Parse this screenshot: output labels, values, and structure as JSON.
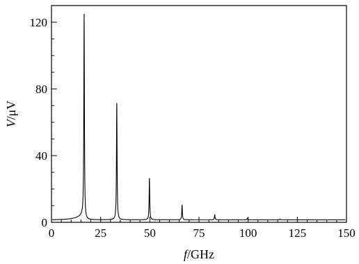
{
  "chart_data": {
    "type": "line",
    "title": "",
    "xlabel_italic": "f",
    "xlabel_unit": "/GHz",
    "ylabel_italic": "V",
    "ylabel_unit": "/μV",
    "xlim": [
      0,
      150
    ],
    "ylim": [
      0,
      130
    ],
    "xticks": [
      0,
      25,
      50,
      75,
      100,
      125,
      150
    ],
    "yticks": [
      0,
      40,
      80,
      120
    ],
    "grid": false,
    "legend": "none",
    "series": [
      {
        "color": "#000000",
        "peaks": [
          {
            "f": 16.6,
            "v": 120
          },
          {
            "f": 33.2,
            "v": 70
          },
          {
            "f": 49.8,
            "v": 25
          },
          {
            "f": 66.4,
            "v": 9
          },
          {
            "f": 83.0,
            "v": 3
          },
          {
            "f": 99.6,
            "v": 1
          },
          {
            "f": 116.2,
            "v": 0.5
          }
        ],
        "baseline": 1.5
      }
    ]
  }
}
